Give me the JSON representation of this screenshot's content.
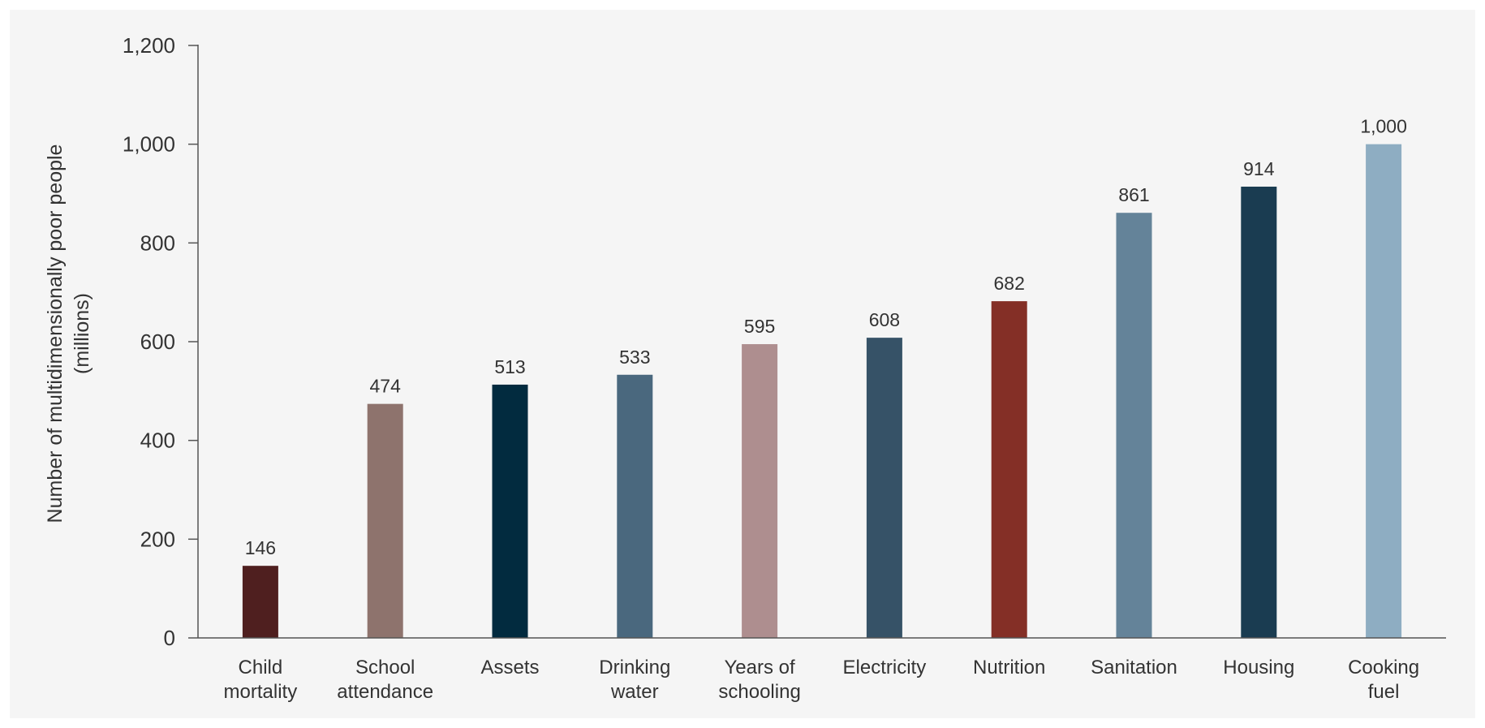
{
  "chart_data": {
    "type": "bar",
    "title": "",
    "xlabel": "",
    "ylabel_lines": [
      "Number of multidimensionally poor people",
      "(millions)"
    ],
    "ylim": [
      0,
      1200
    ],
    "yticks": [
      0,
      200,
      400,
      600,
      800,
      1000,
      1200
    ],
    "ytick_labels": [
      "0",
      "200",
      "400",
      "600",
      "800",
      "1,000",
      "1,200"
    ],
    "grid": false,
    "categories": [
      [
        "Child",
        "mortality"
      ],
      [
        "School",
        "attendance"
      ],
      [
        "Assets"
      ],
      [
        "Drinking",
        "water"
      ],
      [
        "Years of",
        "schooling"
      ],
      [
        "Electricity"
      ],
      [
        "Nutrition"
      ],
      [
        "Sanitation"
      ],
      [
        "Housing"
      ],
      [
        "Cooking",
        "fuel"
      ]
    ],
    "values": [
      146,
      474,
      513,
      533,
      595,
      608,
      682,
      861,
      914,
      1000
    ],
    "value_labels": [
      "146",
      "474",
      "513",
      "533",
      "595",
      "608",
      "682",
      "861",
      "914",
      "1,000"
    ],
    "colors": [
      "#4f1f1f",
      "#8e736d",
      "#022b3f",
      "#4a687e",
      "#ae8e8f",
      "#365267",
      "#842f26",
      "#648399",
      "#1a3c51",
      "#8eadc2"
    ]
  }
}
